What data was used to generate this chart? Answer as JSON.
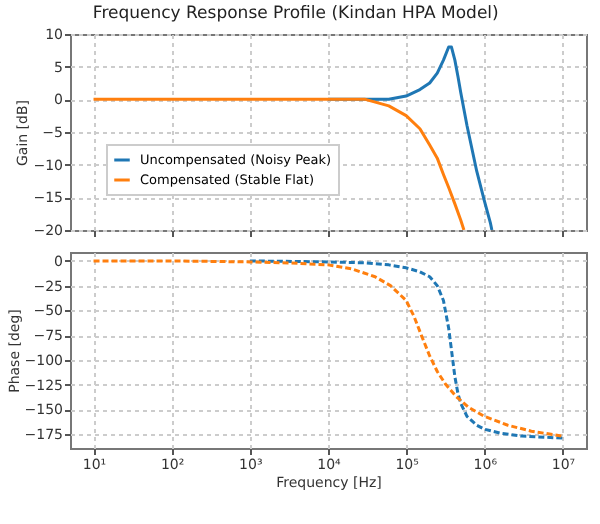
{
  "chart_data": [
    {
      "type": "line",
      "title": "Frequency Response Profile (Kindan HPA Model)",
      "ylabel": "Gain [dB]",
      "log": "x",
      "grid": true,
      "legend": "bottom left",
      "line_style": "solid",
      "tick_labels": "y",
      "xlim": [
        5,
        20000000
      ],
      "xticks": [
        {
          "value": 10,
          "label": null
        },
        {
          "value": 100,
          "label": null
        },
        {
          "value": 1000,
          "label": null
        },
        {
          "value": 10000,
          "label": null
        },
        {
          "value": 100000,
          "label": null
        },
        {
          "value": 1000000,
          "label": null
        },
        {
          "value": 10000000,
          "label": null
        }
      ],
      "ylim": [
        -20,
        10
      ],
      "yticks": [
        -20,
        -15,
        -10,
        -5,
        0,
        5,
        10
      ],
      "series": [
        {
          "name": "Uncompensated (Noisy Peak)",
          "color": "#1f77b4",
          "x": [
            10000,
            30000,
            60000,
            100000,
            150000,
            200000,
            250000,
            300000,
            350000,
            380000,
            420000,
            460000,
            500000,
            600000,
            800000,
            1000000,
            1200000,
            1250000
          ],
          "values": [
            0,
            0,
            0,
            0.5,
            1.5,
            2.5,
            4,
            6,
            8,
            8,
            6,
            3.5,
            1,
            -4,
            -11,
            -15.5,
            -19,
            -20
          ]
        },
        {
          "name": "Compensated (Stable Flat)",
          "color": "#ff7f0e",
          "x": [
            10,
            100,
            1000,
            10000,
            30000,
            60000,
            100000,
            150000,
            200000,
            250000,
            300000,
            350000,
            420000,
            500000,
            548000
          ],
          "values": [
            0,
            0,
            0,
            0,
            0,
            -1,
            -2.5,
            -4.5,
            -7,
            -9,
            -11.5,
            -13.5,
            -16,
            -18.5,
            -20
          ]
        }
      ]
    },
    {
      "type": "line",
      "xlabel": "Frequency [Hz]",
      "ylabel": "Phase [deg]",
      "log": "x",
      "grid": true,
      "line_style": "dashed",
      "xlim": [
        5,
        20000000
      ],
      "xticks": [
        {
          "value": 10,
          "label": "10¹"
        },
        {
          "value": 100,
          "label": "10²"
        },
        {
          "value": 1000,
          "label": "10³"
        },
        {
          "value": 10000,
          "label": "10⁴"
        },
        {
          "value": 100000,
          "label": "10⁵"
        },
        {
          "value": 1000000,
          "label": "10⁶"
        },
        {
          "value": 10000000,
          "label": "10⁷"
        }
      ],
      "ylim": [
        -189,
        9
      ],
      "yticks": [
        -175,
        -150,
        -125,
        -100,
        -75,
        -50,
        -25,
        0
      ],
      "series": [
        {
          "color": "#1f77b4",
          "x": [
            1000,
            10000,
            30000,
            60000,
            100000,
            150000,
            200000,
            250000,
            300000,
            350000,
            380000,
            420000,
            460000,
            500000,
            600000,
            800000,
            1000000,
            1600000,
            3000000,
            10000000
          ],
          "values": [
            0,
            -1,
            -2,
            -4,
            -7,
            -11,
            -16,
            -25,
            -40,
            -68,
            -90,
            -117,
            -134,
            -144,
            -157,
            -166,
            -170,
            -174,
            -177,
            -179
          ]
        },
        {
          "color": "#ff7f0e",
          "x": [
            10,
            100,
            1000,
            3160,
            10000,
            20000,
            40000,
            63000,
            100000,
            126000,
            158000,
            200000,
            251000,
            316000,
            436000,
            631000,
            1000000,
            2000000,
            4000000,
            10000000
          ],
          "values": [
            0,
            0,
            -1,
            -2,
            -4,
            -8,
            -16,
            -25,
            -40,
            -56,
            -76,
            -96,
            -112,
            -124,
            -137,
            -148,
            -157,
            -166,
            -172,
            -177
          ]
        }
      ]
    }
  ]
}
